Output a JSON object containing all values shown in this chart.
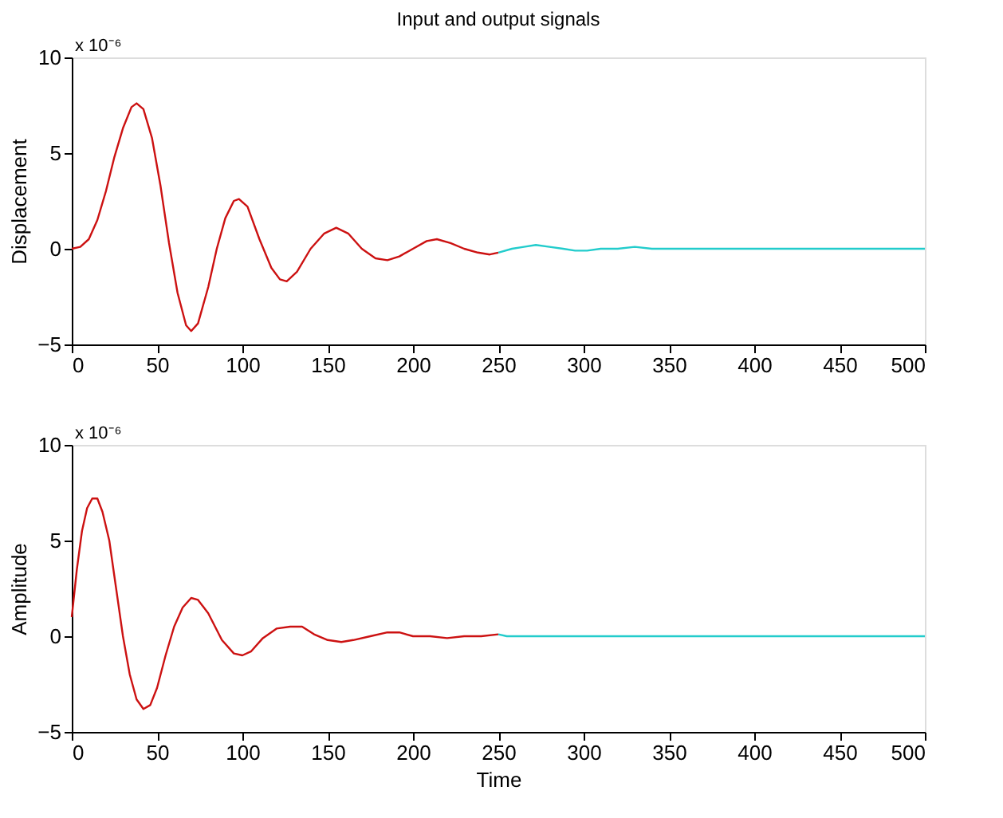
{
  "chart_data": [
    {
      "type": "line",
      "title": "Input and output signals",
      "ylabel": "Displacement",
      "annotations": [
        "x 10⁻⁶"
      ],
      "xlim": [
        0,
        500
      ],
      "xticks": [
        0,
        50,
        100,
        150,
        200,
        250,
        300,
        350,
        400,
        450,
        500
      ],
      "ylim": [
        -5,
        10
      ],
      "yticks": [
        -5,
        0,
        5,
        10
      ],
      "grid": false,
      "series": [
        {
          "color": "#cc1111",
          "x": [
            0,
            5,
            10,
            15,
            20,
            25,
            30,
            35,
            38,
            42,
            47,
            52,
            57,
            62,
            67,
            70,
            74,
            80,
            85,
            90,
            95,
            98,
            103,
            110,
            117,
            122,
            126,
            132,
            140,
            148,
            155,
            162,
            170,
            178,
            185,
            192,
            200,
            208,
            214,
            222,
            230,
            238,
            245,
            250
          ],
          "values": [
            0,
            0.1,
            0.5,
            1.5,
            3,
            4.8,
            6.3,
            7.4,
            7.6,
            7.3,
            5.8,
            3.3,
            0.3,
            -2.3,
            -4,
            -4.3,
            -3.9,
            -2,
            0,
            1.6,
            2.5,
            2.6,
            2.2,
            0.5,
            -1,
            -1.6,
            -1.7,
            -1.2,
            0,
            0.8,
            1.1,
            0.8,
            0,
            -0.5,
            -0.6,
            -0.4,
            0,
            0.4,
            0.5,
            0.3,
            0,
            -0.2,
            -0.3,
            -0.2
          ]
        },
        {
          "color": "#22cccc",
          "x": [
            250,
            258,
            265,
            272,
            280,
            288,
            295,
            302,
            310,
            320,
            330,
            340,
            350,
            400,
            450,
            500
          ],
          "values": [
            -0.2,
            0,
            0.1,
            0.2,
            0.1,
            0,
            -0.1,
            -0.1,
            0,
            0,
            0.1,
            0,
            0,
            0,
            0,
            0
          ]
        }
      ]
    },
    {
      "type": "line",
      "xlabel": "Time",
      "ylabel": "Amplitude",
      "annotations": [
        "x 10⁻⁶"
      ],
      "xlim": [
        0,
        500
      ],
      "xticks": [
        0,
        50,
        100,
        150,
        200,
        250,
        300,
        350,
        400,
        450,
        500
      ],
      "ylim": [
        -5,
        10
      ],
      "yticks": [
        -5,
        0,
        5,
        10
      ],
      "grid": false,
      "series": [
        {
          "color": "#cc1111",
          "x": [
            0,
            3,
            6,
            9,
            12,
            15,
            18,
            22,
            26,
            30,
            34,
            38,
            42,
            46,
            50,
            55,
            60,
            65,
            70,
            74,
            80,
            88,
            95,
            100,
            105,
            112,
            120,
            128,
            135,
            142,
            150,
            158,
            165,
            175,
            185,
            192,
            200,
            210,
            220,
            230,
            240,
            250
          ],
          "values": [
            1,
            3.5,
            5.5,
            6.7,
            7.2,
            7.2,
            6.5,
            5,
            2.5,
            0,
            -2,
            -3.3,
            -3.8,
            -3.6,
            -2.7,
            -1,
            0.5,
            1.5,
            2,
            1.9,
            1.2,
            -0.2,
            -0.9,
            -1,
            -0.8,
            -0.1,
            0.4,
            0.5,
            0.5,
            0.1,
            -0.2,
            -0.3,
            -0.2,
            0,
            0.2,
            0.2,
            0,
            0,
            -0.1,
            0,
            0,
            0.1
          ]
        },
        {
          "color": "#22cccc",
          "x": [
            250,
            255,
            500
          ],
          "values": [
            0.1,
            0,
            0
          ]
        }
      ]
    }
  ]
}
